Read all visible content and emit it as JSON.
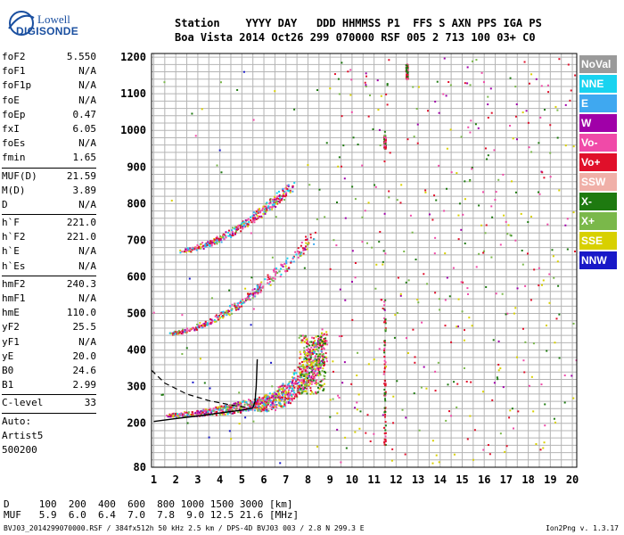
{
  "logo": {
    "line1": "Lowell",
    "line2": "DIGISONDE"
  },
  "header": {
    "line1": "Station    YYYY DAY   DDD HHMMSS P1  FFS S AXN PPS IGA PS",
    "line2": "Boa Vista 2014 Oct26 299 070000 RSF 005 2 713 100 03+ C0"
  },
  "params": {
    "group1": [
      {
        "label": "foF2",
        "value": "5.550"
      },
      {
        "label": "foF1",
        "value": "N/A"
      },
      {
        "label": "foF1p",
        "value": "N/A"
      },
      {
        "label": "foE",
        "value": "N/A"
      },
      {
        "label": "foEp",
        "value": "0.47"
      },
      {
        "label": "fxI",
        "value": "6.05"
      },
      {
        "label": "foEs",
        "value": "N/A"
      },
      {
        "label": "fmin",
        "value": "1.65"
      }
    ],
    "group2": [
      {
        "label": "MUF(D)",
        "value": "21.59"
      },
      {
        "label": "M(D)",
        "value": "3.89"
      },
      {
        "label": "D",
        "value": "N/A"
      }
    ],
    "group3": [
      {
        "label": "h`F",
        "value": "221.0"
      },
      {
        "label": "h`F2",
        "value": "221.0"
      },
      {
        "label": "h`E",
        "value": "N/A"
      },
      {
        "label": "h`Es",
        "value": "N/A"
      }
    ],
    "group4": [
      {
        "label": "hmF2",
        "value": "240.3"
      },
      {
        "label": "hmF1",
        "value": "N/A"
      },
      {
        "label": "hmE",
        "value": "110.0"
      },
      {
        "label": "yF2",
        "value": "25.5"
      },
      {
        "label": "yF1",
        "value": "N/A"
      },
      {
        "label": "yE",
        "value": "20.0"
      },
      {
        "label": "B0",
        "value": "24.6"
      },
      {
        "label": "B1",
        "value": "2.99"
      }
    ],
    "group5": [
      {
        "label": "C-level",
        "value": "33"
      }
    ],
    "auto": [
      "Auto:",
      "Artist5",
      "500200"
    ]
  },
  "legend": [
    {
      "label": "NoVal",
      "color": "#9a9a9a"
    },
    {
      "label": "NNE",
      "color": "#19d3f0"
    },
    {
      "label": "E",
      "color": "#3fa8f0"
    },
    {
      "label": "W",
      "color": "#a000a8"
    },
    {
      "label": "Vo-",
      "color": "#f04aa8"
    },
    {
      "label": "Vo+",
      "color": "#e0102a"
    },
    {
      "label": "SSW",
      "color": "#f0b0a8"
    },
    {
      "label": "X-",
      "color": "#1e7a10"
    },
    {
      "label": "X+",
      "color": "#7ab84a"
    },
    {
      "label": "SSE",
      "color": "#d8d000"
    },
    {
      "label": "NNW",
      "color": "#1818c8"
    }
  ],
  "footer": {
    "line1": "D     100  200  400  600  800 1000 1500 3000 [km]",
    "line2": "MUF   5.9  6.0  6.4  7.0  7.8  9.0 12.5 21.6 [MHz]",
    "line3": "BVJ03_2014299070000.RSF / 384fx512h 50 kHz 2.5 km / DPS-4D BVJ03 003 / 2.8 N 299.3 E",
    "version": "Ion2Png v. 1.3.17"
  },
  "chart_data": {
    "type": "scatter",
    "title": "",
    "xlabel": "",
    "ylabel": "",
    "xlim": [
      0.9,
      20.2
    ],
    "ylim": [
      80,
      1210
    ],
    "x_ticks": [
      1,
      2,
      3,
      4,
      5,
      6,
      7,
      8,
      9,
      10,
      11,
      12,
      13,
      14,
      15,
      16,
      17,
      18,
      19,
      20
    ],
    "y_ticks": [
      80,
      200,
      300,
      400,
      500,
      600,
      700,
      800,
      900,
      1000,
      1100,
      1200
    ],
    "grid": true,
    "legend_position": "right",
    "traces": [
      {
        "name": "O-trace 1st hop",
        "f_start": 1.7,
        "f_end": 5.5,
        "h_start": 222,
        "h_end": 250
      },
      {
        "name": "F2 cusp",
        "f_start": 5.5,
        "f_end": 8.8,
        "h_start": 250,
        "h_end": 420
      },
      {
        "name": "2nd hop",
        "f_start": 1.8,
        "f_end": 8.3,
        "h_start": 445,
        "h_end": 710
      },
      {
        "name": "3rd hop",
        "f_start": 2.2,
        "f_end": 7.3,
        "h_start": 670,
        "h_end": 850
      }
    ],
    "interference": [
      {
        "f": 11.5,
        "h_from": 140,
        "h_to": 540
      },
      {
        "f": 11.5,
        "h_from": 950,
        "h_to": 985
      },
      {
        "f": 12.5,
        "h_from": 1140,
        "h_to": 1180
      }
    ],
    "model_profile": [
      {
        "f": 1.0,
        "h": 205
      },
      {
        "f": 2.0,
        "h": 213
      },
      {
        "f": 3.0,
        "h": 220
      },
      {
        "f": 4.0,
        "h": 228
      },
      {
        "f": 5.0,
        "h": 236
      },
      {
        "f": 5.5,
        "h": 242
      },
      {
        "f": 5.6,
        "h": 260
      },
      {
        "f": 5.62,
        "h": 280
      },
      {
        "f": 5.65,
        "h": 300
      },
      {
        "f": 5.7,
        "h": 375
      }
    ],
    "dashed_profile": [
      {
        "f": 0.9,
        "h": 345
      },
      {
        "f": 1.5,
        "h": 310
      },
      {
        "f": 2.5,
        "h": 280
      },
      {
        "f": 3.5,
        "h": 262
      },
      {
        "f": 4.5,
        "h": 250
      },
      {
        "f": 5.2,
        "h": 244
      }
    ]
  }
}
